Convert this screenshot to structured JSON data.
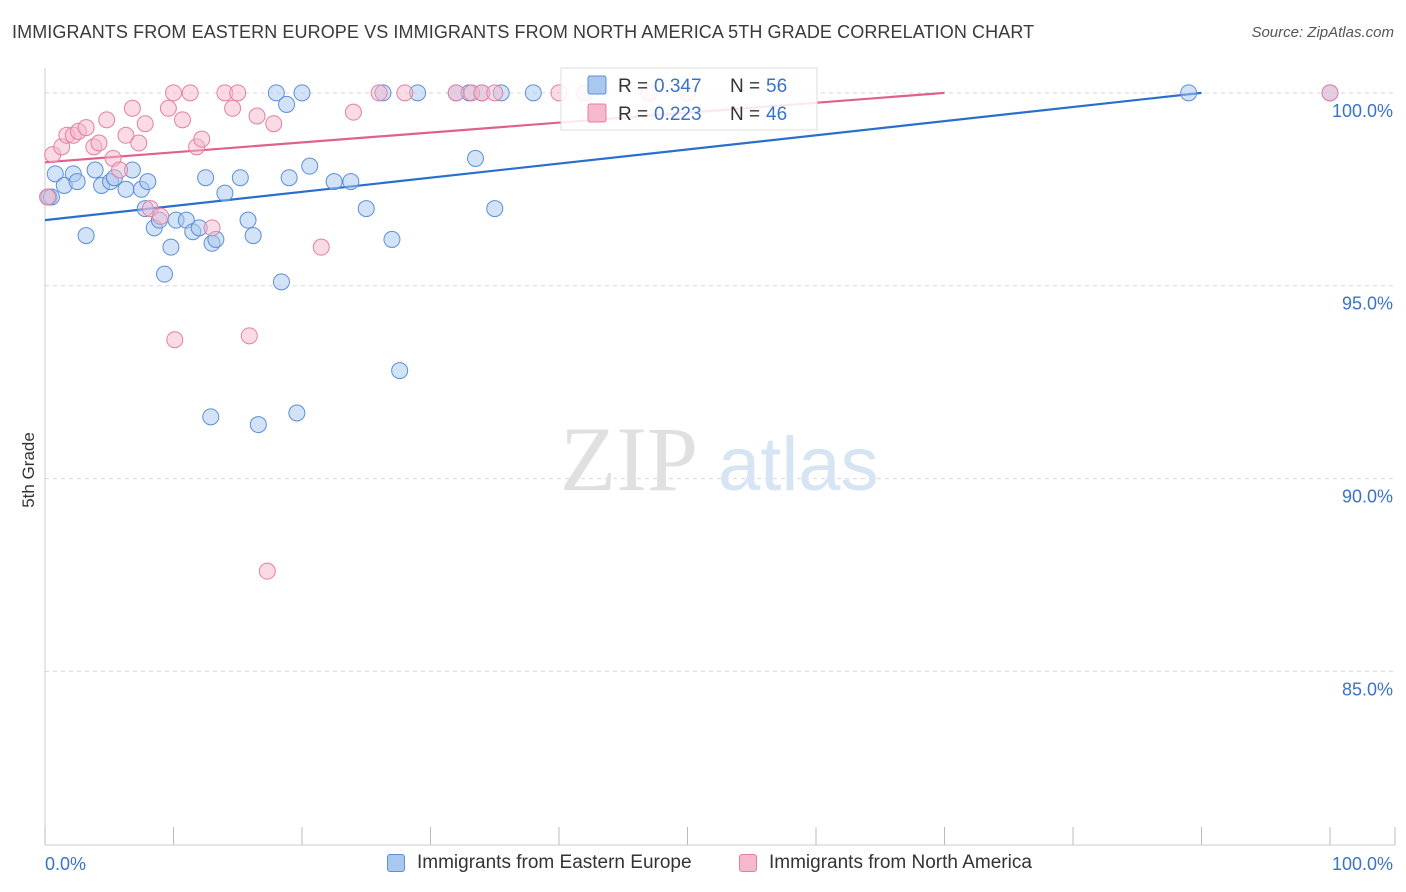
{
  "header": {
    "title": "IMMIGRANTS FROM EASTERN EUROPE VS IMMIGRANTS FROM NORTH AMERICA 5TH GRADE CORRELATION CHART",
    "source": "Source: ZipAtlas.com"
  },
  "watermark": {
    "zip": "ZIP",
    "atlas": "atlas"
  },
  "colors": {
    "blue_fill": "#a8c8f0",
    "blue_stroke": "#5b8fd6",
    "blue_line": "#2a6fcc",
    "pink_fill": "#f6b8cc",
    "pink_stroke": "#e47fa3",
    "pink_line": "#e0608e",
    "axis_label": "#3a72c8",
    "grid": "#d8d8d8"
  },
  "legend_box": {
    "rows": [
      {
        "r_label": "R =",
        "r_value": "0.347",
        "n_label": "N =",
        "n_value": "56",
        "color": "blue"
      },
      {
        "r_label": "R =",
        "r_value": "0.223",
        "n_label": "N =",
        "n_value": "46",
        "color": "pink"
      }
    ]
  },
  "chart_data": {
    "type": "scatter",
    "title": "IMMIGRANTS FROM EASTERN EUROPE VS IMMIGRANTS FROM NORTH AMERICA 5TH GRADE CORRELATION CHART",
    "xlabel": "",
    "ylabel": "5th Grade",
    "xlim": [
      0,
      100
    ],
    "ylim": [
      80.5,
      100.8
    ],
    "x_tick_labels": [
      "0.0%",
      "100.0%"
    ],
    "y_ticks": [
      100,
      95,
      90,
      85
    ],
    "y_tick_labels": [
      "100.0%",
      "95.0%",
      "90.0%",
      "85.0%"
    ],
    "legend_position": "bottom",
    "series": [
      {
        "name": "Immigrants from Eastern Europe",
        "color": "blue",
        "R": 0.347,
        "N": 56,
        "trend": {
          "x": [
            0,
            90
          ],
          "y": [
            96.7,
            100.0
          ]
        },
        "points": [
          [
            0.3,
            97.3
          ],
          [
            0.8,
            97.9
          ],
          [
            1.5,
            97.6
          ],
          [
            2.2,
            97.9
          ],
          [
            2.5,
            97.7
          ],
          [
            3.2,
            96.3
          ],
          [
            3.9,
            98.0
          ],
          [
            4.4,
            97.6
          ],
          [
            5.1,
            97.7
          ],
          [
            5.4,
            97.8
          ],
          [
            6.3,
            97.5
          ],
          [
            6.8,
            98.0
          ],
          [
            7.5,
            97.5
          ],
          [
            7.8,
            97.0
          ],
          [
            8.0,
            97.7
          ],
          [
            8.5,
            96.5
          ],
          [
            8.9,
            96.7
          ],
          [
            9.3,
            95.3
          ],
          [
            9.8,
            96.0
          ],
          [
            10.2,
            96.7
          ],
          [
            11.0,
            96.7
          ],
          [
            11.5,
            96.4
          ],
          [
            12.0,
            96.5
          ],
          [
            12.5,
            97.8
          ],
          [
            13.0,
            96.1
          ],
          [
            13.3,
            96.2
          ],
          [
            14.0,
            97.4
          ],
          [
            15.2,
            97.8
          ],
          [
            15.8,
            96.7
          ],
          [
            16.2,
            96.3
          ],
          [
            18.0,
            100.0
          ],
          [
            18.4,
            95.1
          ],
          [
            18.8,
            99.7
          ],
          [
            19.0,
            97.8
          ],
          [
            20.0,
            100.0
          ],
          [
            20.6,
            98.1
          ],
          [
            22.5,
            97.7
          ],
          [
            23.8,
            97.7
          ],
          [
            25.0,
            97.0
          ],
          [
            26.3,
            100.0
          ],
          [
            27.0,
            96.2
          ],
          [
            29.0,
            100.0
          ],
          [
            32.0,
            100.0
          ],
          [
            33.0,
            100.0
          ],
          [
            33.5,
            98.3
          ],
          [
            34.0,
            100.0
          ],
          [
            35.0,
            97.0
          ],
          [
            35.5,
            100.0
          ],
          [
            38.0,
            100.0
          ],
          [
            12.9,
            91.6
          ],
          [
            16.6,
            91.4
          ],
          [
            19.6,
            91.7
          ],
          [
            27.6,
            92.8
          ],
          [
            89.0,
            100.0
          ],
          [
            100.0,
            100.0
          ],
          [
            0.5,
            97.3
          ]
        ]
      },
      {
        "name": "Immigrants from North America",
        "color": "pink",
        "R": 0.223,
        "N": 46,
        "trend": {
          "x": [
            0,
            70
          ],
          "y": [
            98.2,
            100.0
          ]
        },
        "points": [
          [
            0.2,
            97.3
          ],
          [
            0.6,
            98.4
          ],
          [
            1.3,
            98.6
          ],
          [
            1.7,
            98.9
          ],
          [
            2.2,
            98.9
          ],
          [
            2.6,
            99.0
          ],
          [
            3.2,
            99.1
          ],
          [
            3.8,
            98.6
          ],
          [
            4.2,
            98.7
          ],
          [
            4.8,
            99.3
          ],
          [
            5.3,
            98.3
          ],
          [
            5.8,
            98.0
          ],
          [
            6.3,
            98.9
          ],
          [
            6.8,
            99.6
          ],
          [
            7.3,
            98.7
          ],
          [
            7.8,
            99.2
          ],
          [
            8.2,
            97.0
          ],
          [
            9.0,
            96.8
          ],
          [
            9.6,
            99.6
          ],
          [
            10.0,
            100.0
          ],
          [
            10.7,
            99.3
          ],
          [
            11.3,
            100.0
          ],
          [
            11.8,
            98.6
          ],
          [
            12.2,
            98.8
          ],
          [
            13.0,
            96.5
          ],
          [
            14.0,
            100.0
          ],
          [
            14.6,
            99.6
          ],
          [
            15.0,
            100.0
          ],
          [
            16.5,
            99.4
          ],
          [
            17.8,
            99.2
          ],
          [
            21.5,
            96.0
          ],
          [
            24.0,
            99.5
          ],
          [
            26.0,
            100.0
          ],
          [
            28.0,
            100.0
          ],
          [
            32.0,
            100.0
          ],
          [
            33.2,
            100.0
          ],
          [
            34.0,
            100.0
          ],
          [
            35.0,
            100.0
          ],
          [
            40.0,
            100.0
          ],
          [
            42.0,
            100.0
          ],
          [
            47.0,
            100.0
          ],
          [
            50.0,
            100.0
          ],
          [
            10.1,
            93.6
          ],
          [
            15.9,
            93.7
          ],
          [
            17.3,
            87.6
          ],
          [
            100.0,
            100.0
          ]
        ]
      }
    ]
  },
  "bottom_legend": [
    {
      "label": "Immigrants from Eastern Europe",
      "color": "blue"
    },
    {
      "label": "Immigrants from North America",
      "color": "pink"
    }
  ]
}
